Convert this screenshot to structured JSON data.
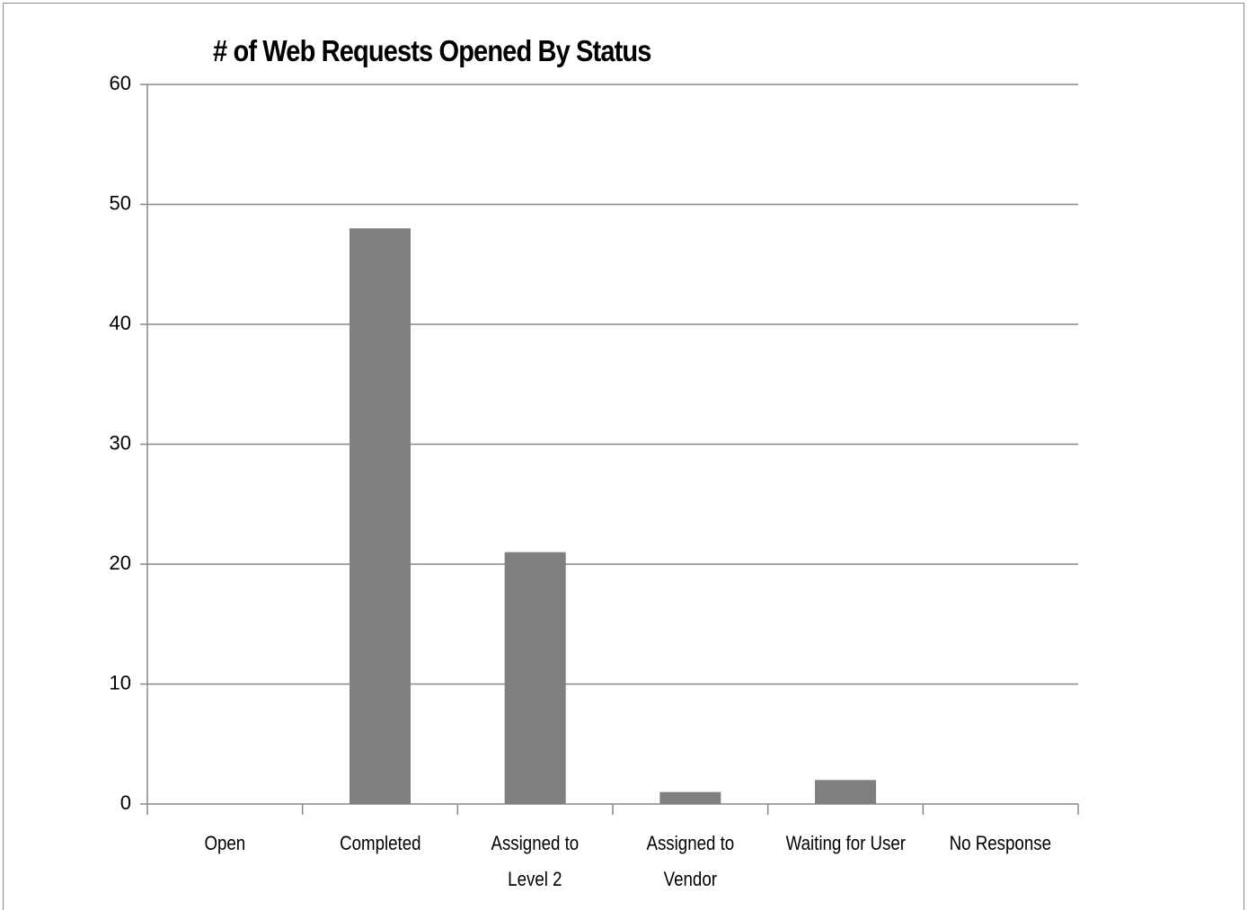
{
  "chart_data": {
    "type": "bar",
    "title": "# of Web Requests Opened By Status",
    "categories": [
      "Open",
      "Completed",
      "Assigned to Level 2",
      "Assigned to Vendor",
      "Waiting for User",
      "No Response"
    ],
    "values": [
      0,
      48,
      21,
      1,
      2,
      0
    ],
    "color": "#808080",
    "ylim": [
      0,
      60
    ],
    "yticks": [
      0,
      10,
      20,
      30,
      40,
      50,
      60
    ],
    "grid": true
  }
}
